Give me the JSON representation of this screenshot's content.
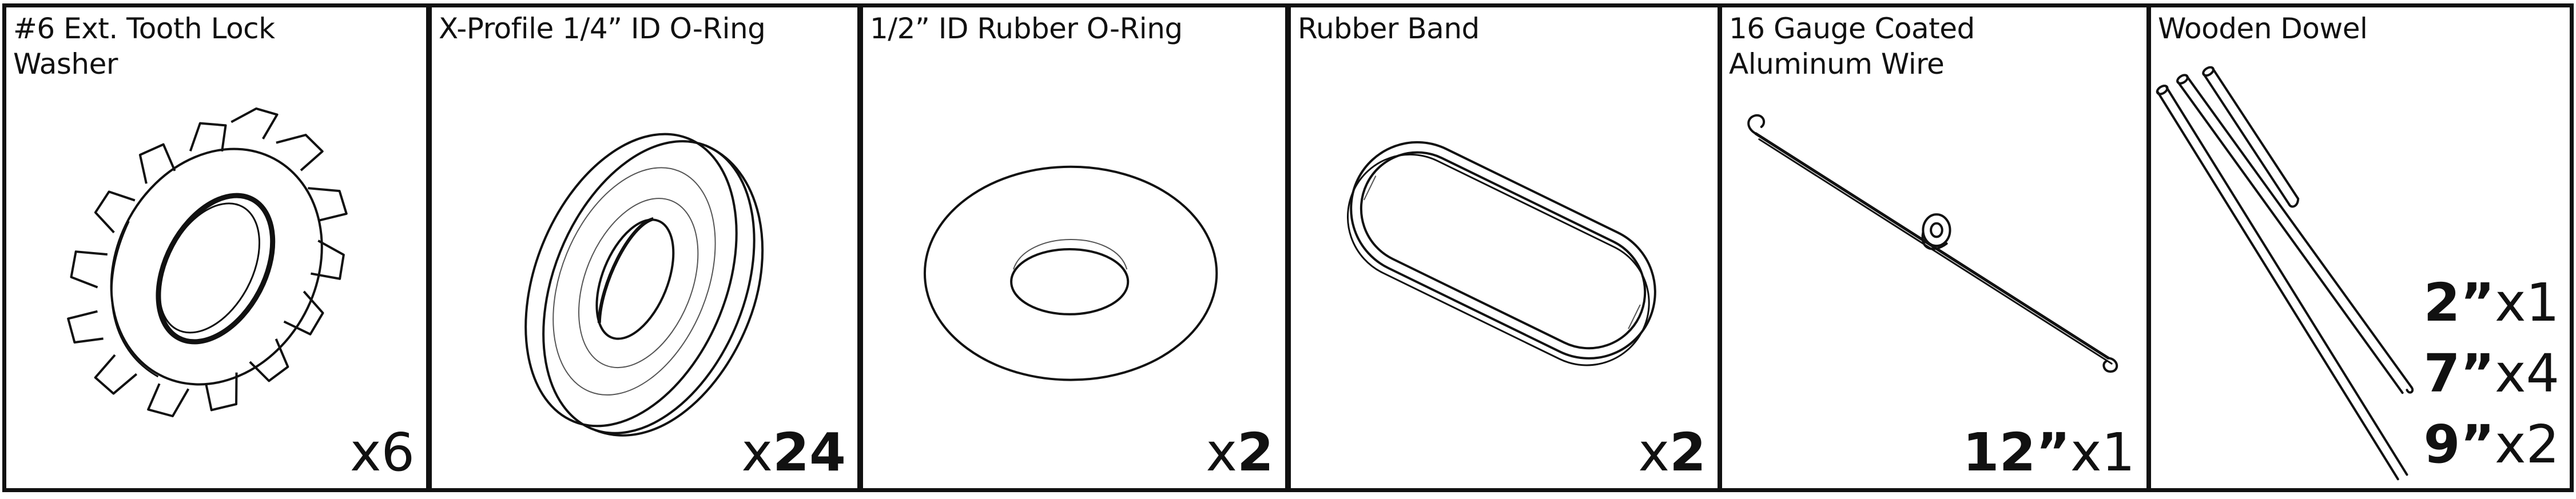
{
  "panels": [
    {
      "title": "#6 Ext. Tooth Lock\nWasher",
      "qty_prefix": "x",
      "qty_value": "6",
      "icon": "lock-washer-icon"
    },
    {
      "title": "X-Profile 1/4” ID O-Ring",
      "qty_prefix": "x",
      "qty_value": "24",
      "icon": "x-profile-o-ring-icon"
    },
    {
      "title": "1/2” ID Rubber O-Ring",
      "qty_prefix": "x",
      "qty_value": "2",
      "icon": "rubber-o-ring-icon"
    },
    {
      "title": "Rubber Band",
      "qty_prefix": "x",
      "qty_value": "2",
      "icon": "rubber-band-icon"
    },
    {
      "title": "16 Gauge Coated\nAluminum Wire",
      "qty_length": "12”",
      "qty_prefix": "x",
      "qty_value": "1",
      "icon": "aluminum-wire-icon"
    },
    {
      "title": "Wooden Dowel",
      "icon": "wooden-dowel-icon",
      "sizes": [
        {
          "length": "2”",
          "count": "x1"
        },
        {
          "length": "7”",
          "count": "x4"
        },
        {
          "length": "9”",
          "count": "x2"
        }
      ]
    }
  ]
}
